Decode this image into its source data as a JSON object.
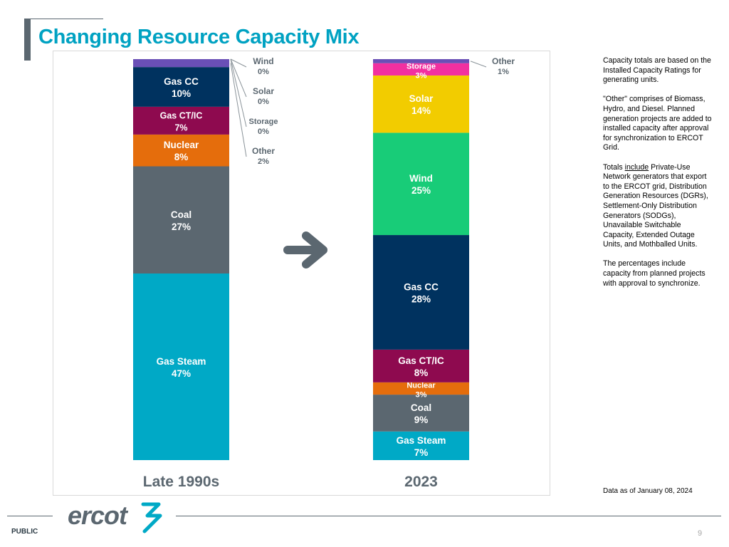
{
  "title": "Changing Resource Capacity Mix",
  "notes": {
    "p1": "Capacity totals are based on the Installed Capacity Ratings for generating units.",
    "p2": "\"Other\" comprises of Biomass, Hydro, and Diesel. Planned generation projects are added to installed capacity after approval for synchronization to ERCOT Grid.",
    "p3_pre": "Totals ",
    "p3_u": "include",
    "p3_post": " Private-Use Network generators that export to the ERCOT grid, Distribution Generation Resources (DGRs), Settlement-Only Distribution Generators (SODGs),  Unavailable Switchable Capacity, Extended Outage Units, and Mothballed Units.",
    "p4": "The percentages include capacity from planned projects with approval to synchronize."
  },
  "data_as_of": "Data as of January 08, 2024",
  "footer": {
    "public": "PUBLIC",
    "page": "9",
    "logo_text": "ercot"
  },
  "colors": {
    "title": "#00a2c2",
    "gas_steam": "#00a9c6",
    "coal": "#5b6770",
    "nuclear": "#e56d0c",
    "gas_ct_ic": "#8e0a4f",
    "gas_cc": "#00325f",
    "wind": "#18cc78",
    "solar": "#f2cc00",
    "storage": "#f230a0",
    "other": "#6a4fb6",
    "arrow": "#5b6770"
  },
  "chart_data": {
    "type": "bar",
    "stacked": true,
    "unit": "%",
    "categories": [
      "Late 1990s",
      "2023"
    ],
    "series": [
      {
        "key": "gas_steam",
        "name": "Gas Steam",
        "values": [
          47,
          7
        ]
      },
      {
        "key": "coal",
        "name": "Coal",
        "values": [
          27,
          9
        ]
      },
      {
        "key": "nuclear",
        "name": "Nuclear",
        "values": [
          8,
          3
        ]
      },
      {
        "key": "gas_ct_ic",
        "name": "Gas CT/IC",
        "values": [
          7,
          8
        ]
      },
      {
        "key": "gas_cc",
        "name": "Gas CC",
        "values": [
          10,
          28
        ]
      },
      {
        "key": "wind",
        "name": "Wind",
        "values": [
          0,
          25
        ]
      },
      {
        "key": "solar",
        "name": "Solar",
        "values": [
          0,
          14
        ]
      },
      {
        "key": "storage",
        "name": "Storage",
        "values": [
          0,
          3
        ]
      },
      {
        "key": "other",
        "name": "Other",
        "values": [
          2,
          1
        ]
      }
    ]
  }
}
